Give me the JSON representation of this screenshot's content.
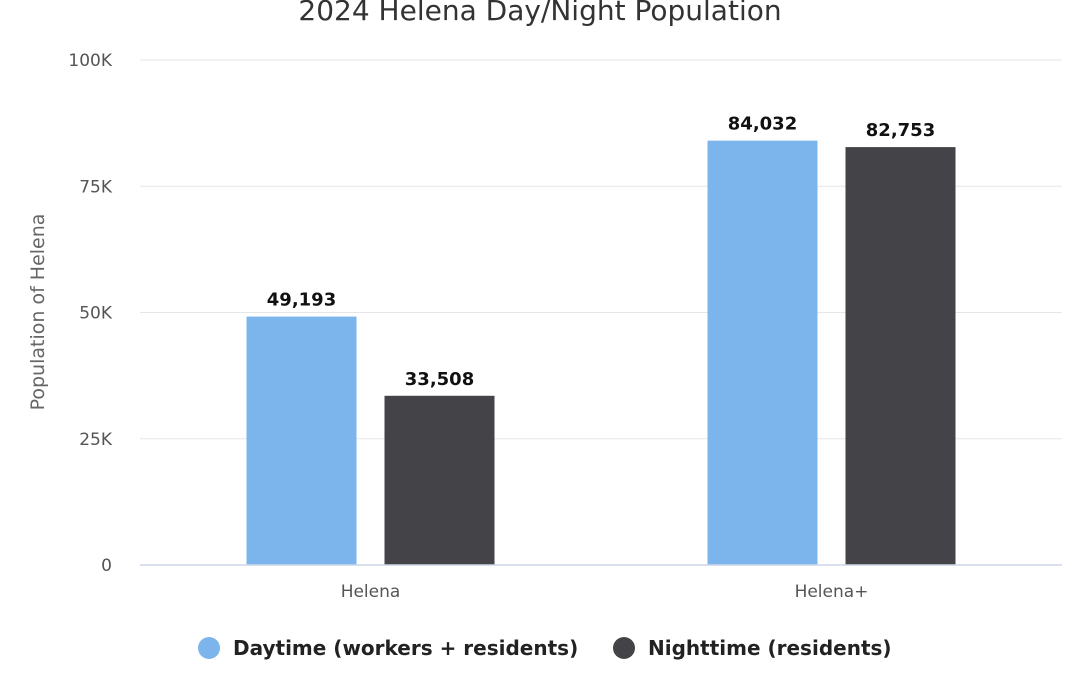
{
  "chart_data": {
    "type": "bar",
    "title": "2024 Helena Day/Night Population",
    "xlabel": "",
    "ylabel": "Population of Helena",
    "ylim": [
      0,
      100000
    ],
    "yticks": [
      0,
      25000,
      50000,
      75000,
      100000
    ],
    "ytick_labels": [
      "0",
      "25K",
      "50K",
      "75K",
      "100K"
    ],
    "categories": [
      "Helena",
      "Helena+"
    ],
    "series": [
      {
        "name": "Daytime (workers + residents)",
        "color": "#7cb5ec",
        "values": [
          49193,
          84032
        ],
        "data_labels": [
          "49,193",
          "84,032"
        ]
      },
      {
        "name": "Nighttime (residents)",
        "color": "#434348",
        "values": [
          33508,
          82753
        ],
        "data_labels": [
          "33,508",
          "82,753"
        ]
      }
    ],
    "grid": true,
    "legend_position": "bottom-center",
    "colors": {
      "grid": "#e6e6e6",
      "axis": "#ccd6eb"
    }
  }
}
